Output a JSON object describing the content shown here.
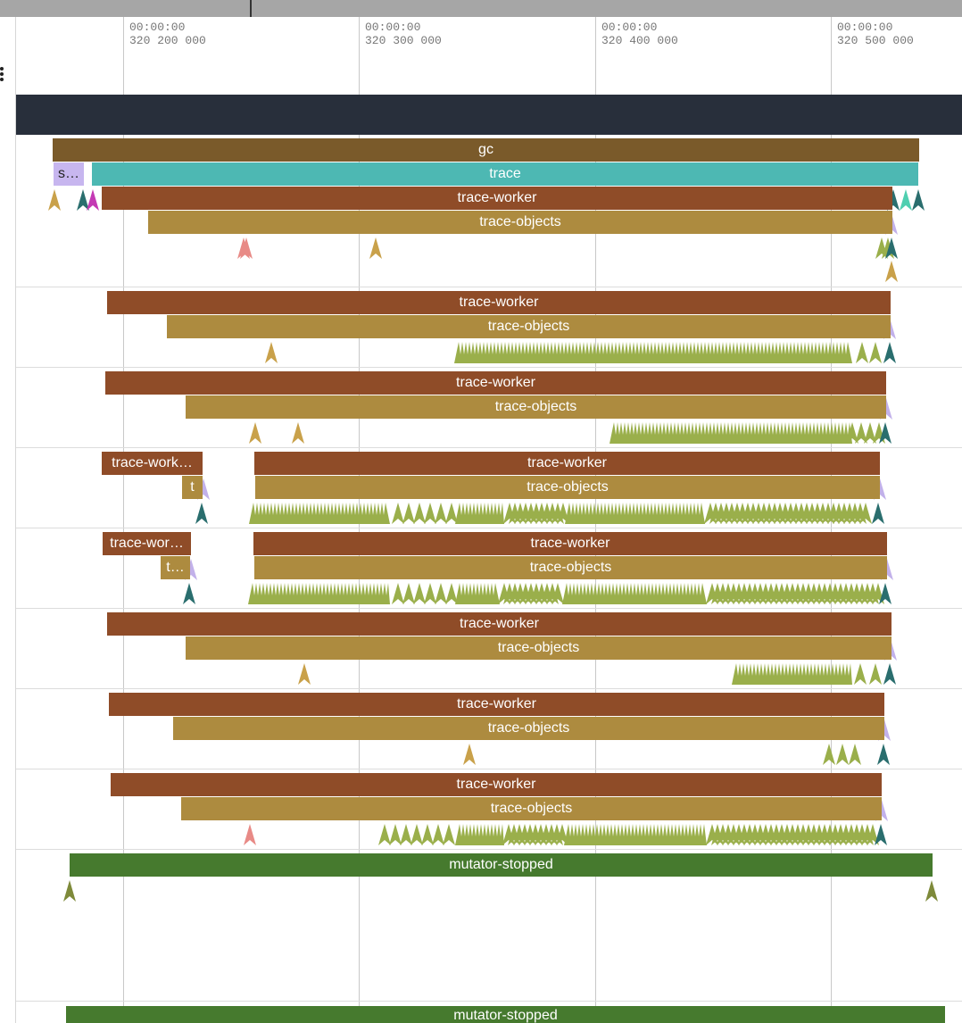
{
  "ruler": {
    "ticks": [
      {
        "time": "00:00:00",
        "ns": "320 200 000"
      },
      {
        "time": "00:00:00",
        "ns": "320 300 000"
      },
      {
        "time": "00:00:00",
        "ns": "320 400 000"
      },
      {
        "time": "00:00:00",
        "ns": "320 500 000"
      }
    ]
  },
  "colors": {
    "gc": "#7a5a2a",
    "trace": "#4db8b3",
    "trace_worker": "#8f4c28",
    "trace_objects": "#ad8b3f",
    "mutator_stopped": "#467a2e",
    "small_slice": "#c7b6ef",
    "marker_green": "#9aaf4b",
    "marker_gold": "#c9a14a",
    "marker_lavender": "#c2b1ea",
    "marker_teal": "#2a6e6e",
    "marker_pink": "#e88a86",
    "marker_magenta": "#c43ab4",
    "marker_mint": "#4fcfb0",
    "marker_olive": "#7e8a3a",
    "header_band": "#282f3b"
  },
  "slices": {
    "gc": "gc",
    "trace": "trace",
    "s_short": "s…",
    "trace_worker": "trace-worker",
    "trace_objects": "trace-objects",
    "trace_work_trunc": "trace-work…",
    "trace_wor_trunc": "trace-wor…",
    "t_short": "t",
    "t_trunc": "t…",
    "mutator_stopped": "mutator-stopped"
  }
}
